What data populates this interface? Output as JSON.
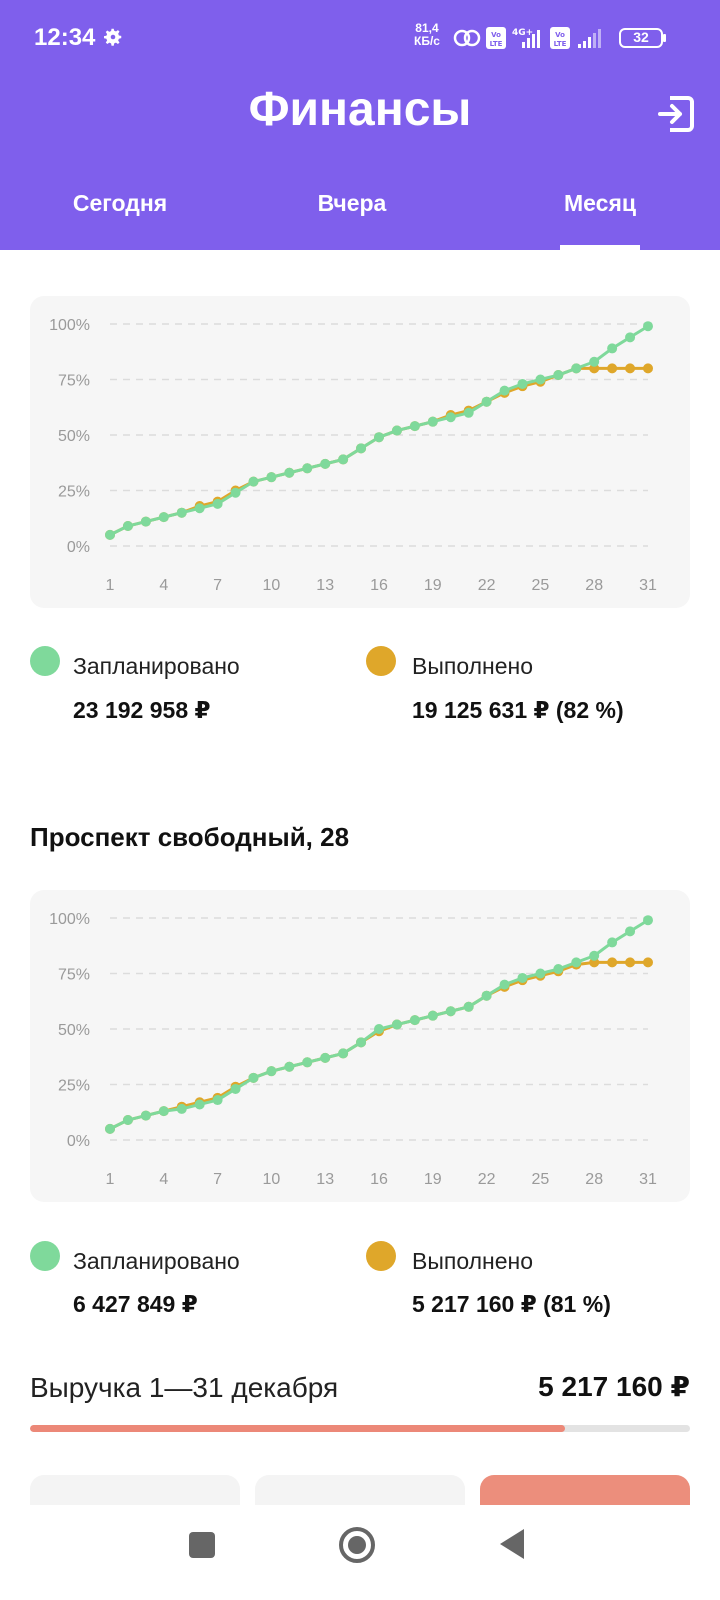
{
  "status": {
    "time": "12:34",
    "net_speed_value": "81,4",
    "net_speed_unit": "КБ/с",
    "battery": "32"
  },
  "header": {
    "title": "Финансы"
  },
  "tabs": [
    {
      "label": "Сегодня"
    },
    {
      "label": "Вчера"
    },
    {
      "label": "Месяц",
      "active": true
    }
  ],
  "colors": {
    "accent": "#7f5fec",
    "planned": "#7fd99b",
    "done": "#dfa72a",
    "revenue": "#ec8878"
  },
  "summary": {
    "planned_label": "Запланировано",
    "planned_value": "23 192 958 ₽",
    "done_label": "Выполнено",
    "done_value": "19 125 631 ₽ (82 %)"
  },
  "branch": {
    "title": "Проспект свободный, 28",
    "planned_label": "Запланировано",
    "planned_value": "6 427 849 ₽",
    "done_label": "Выполнено",
    "done_value": "5 217 160 ₽ (81 %)"
  },
  "revenue": {
    "label": "Выручка 1—31 декабря",
    "value": "5 217 160 ₽",
    "progress": 0.81
  },
  "chart_data": [
    {
      "type": "line",
      "x": [
        1,
        2,
        3,
        4,
        5,
        6,
        7,
        8,
        9,
        10,
        11,
        12,
        13,
        14,
        15,
        16,
        17,
        18,
        19,
        20,
        21,
        22,
        23,
        24,
        25,
        26,
        27,
        28,
        29,
        30,
        31
      ],
      "xticks": [
        "1",
        "4",
        "7",
        "10",
        "13",
        "16",
        "19",
        "22",
        "25",
        "28",
        "31"
      ],
      "yticks": [
        "0%",
        "25%",
        "50%",
        "75%",
        "100%"
      ],
      "ylim": [
        0,
        100
      ],
      "grid": true,
      "series": [
        {
          "name": "Запланировано",
          "values": [
            5,
            9,
            11,
            13,
            15,
            17,
            19,
            24,
            29,
            31,
            33,
            35,
            37,
            39,
            44,
            49,
            52,
            54,
            56,
            58,
            60,
            65,
            70,
            73,
            75,
            77,
            80,
            83,
            89,
            94,
            99
          ]
        },
        {
          "name": "Выполнено",
          "values": [
            5,
            9,
            11,
            13,
            15,
            18,
            20,
            25,
            29,
            31,
            33,
            35,
            37,
            39,
            44,
            49,
            52,
            54,
            56,
            59,
            61,
            65,
            69,
            72,
            74,
            77,
            80,
            80,
            80,
            80,
            80
          ]
        }
      ]
    },
    {
      "type": "line",
      "x": [
        1,
        2,
        3,
        4,
        5,
        6,
        7,
        8,
        9,
        10,
        11,
        12,
        13,
        14,
        15,
        16,
        17,
        18,
        19,
        20,
        21,
        22,
        23,
        24,
        25,
        26,
        27,
        28,
        29,
        30,
        31
      ],
      "xticks": [
        "1",
        "4",
        "7",
        "10",
        "13",
        "16",
        "19",
        "22",
        "25",
        "28",
        "31"
      ],
      "yticks": [
        "0%",
        "25%",
        "50%",
        "75%",
        "100%"
      ],
      "ylim": [
        0,
        100
      ],
      "grid": true,
      "series": [
        {
          "name": "Запланировано",
          "values": [
            5,
            9,
            11,
            13,
            14,
            16,
            18,
            23,
            28,
            31,
            33,
            35,
            37,
            39,
            44,
            50,
            52,
            54,
            56,
            58,
            60,
            65,
            70,
            73,
            75,
            77,
            80,
            83,
            89,
            94,
            99
          ]
        },
        {
          "name": "Выполнено",
          "values": [
            5,
            9,
            11,
            13,
            15,
            17,
            19,
            24,
            28,
            31,
            33,
            35,
            37,
            39,
            44,
            49,
            52,
            54,
            56,
            58,
            60,
            65,
            69,
            72,
            74,
            76,
            79,
            80,
            80,
            80,
            80
          ]
        }
      ]
    }
  ]
}
